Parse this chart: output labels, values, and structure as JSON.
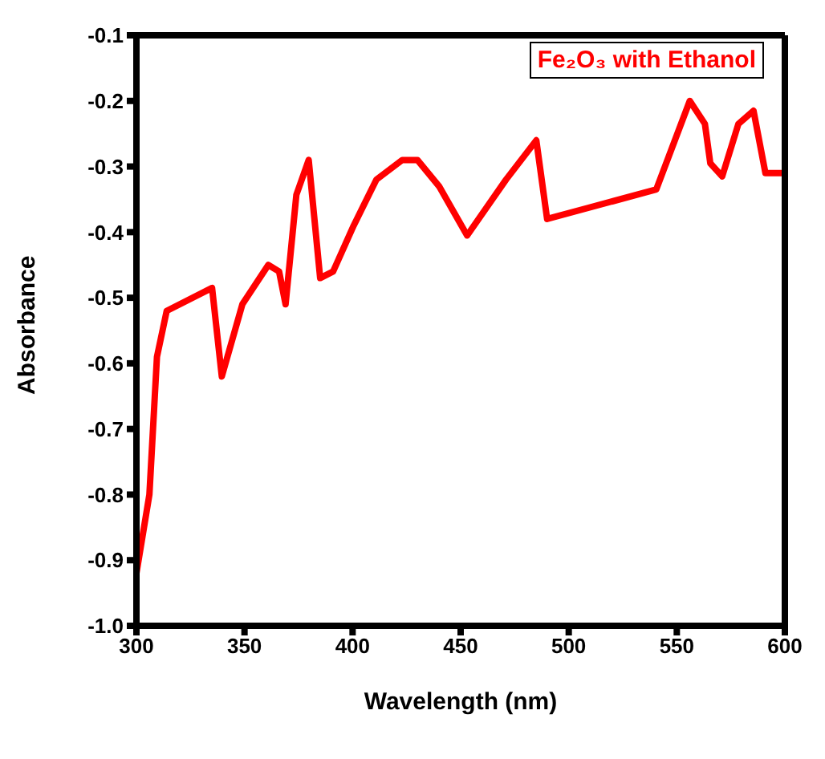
{
  "chart_data": {
    "type": "line",
    "xlabel": "Wavelength (nm)",
    "ylabel": "Absorbance",
    "xlim": [
      300,
      600
    ],
    "xticks": [
      300,
      350,
      400,
      450,
      500,
      550,
      600
    ],
    "ylim": [
      -1,
      -0.1
    ],
    "yticks": [
      {
        "value": -1,
        "label": "-1.0"
      },
      -0.9,
      -0.8,
      -0.7,
      -0.6,
      -0.5,
      -0.4,
      -0.3,
      -0.2,
      -0.1
    ],
    "legend": "top right",
    "marker": "none",
    "line_style": "solid",
    "series": [
      {
        "name": "Fe₂O₃ with Ethanol",
        "color": "#ff0000",
        "x": [
          300,
          306,
          309.5,
          314,
          335,
          339.5,
          349,
          361,
          366,
          369,
          374,
          379.7,
          385,
          391,
          400.5,
          411,
          423,
          430,
          440,
          453,
          471,
          485,
          490,
          540.5,
          556,
          563,
          565.5,
          571,
          578.5,
          585.5,
          591,
          600
        ],
        "values": [
          -0.92,
          -0.8,
          -0.59,
          -0.52,
          -0.485,
          -0.62,
          -0.51,
          -0.45,
          -0.46,
          -0.51,
          -0.343,
          -0.29,
          -0.47,
          -0.46,
          -0.39,
          -0.32,
          -0.29,
          -0.29,
          -0.33,
          -0.405,
          -0.32,
          -0.26,
          -0.38,
          -0.335,
          -0.2,
          -0.235,
          -0.295,
          -0.315,
          -0.235,
          -0.215,
          -0.31,
          -0.31
        ]
      }
    ]
  }
}
